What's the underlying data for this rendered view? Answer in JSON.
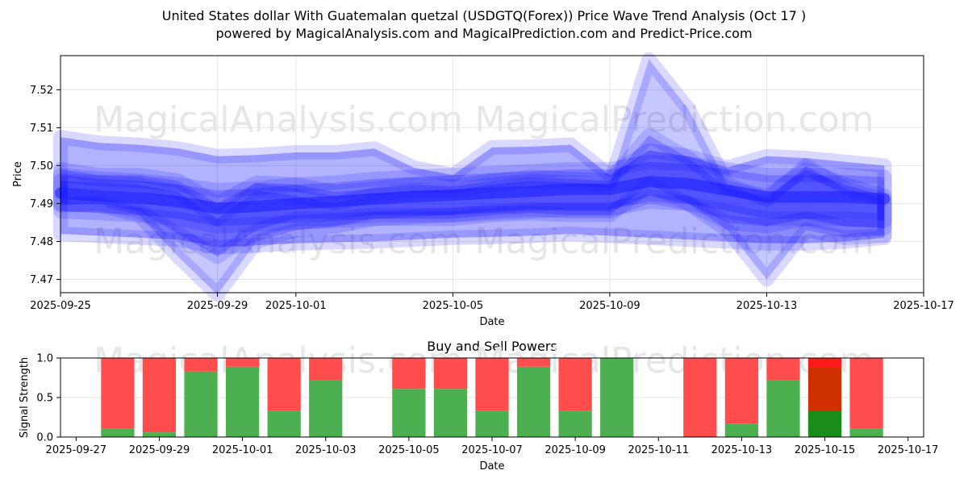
{
  "title_line1": "United States dollar With Guatemalan quetzal (USDGTQ(Forex)) Price Wave Trend Analysis (Oct 17 )",
  "title_line2": "powered by MagicalAnalysis.com and MagicalPrediction.com and Predict-Price.com",
  "watermark_left": "MagicalAnalysis.com",
  "watermark_right": "MagicalPrediction.com",
  "colors": {
    "wave": "#0000ff",
    "buy": "#4caf50",
    "sell": "#ff4d4d",
    "buy_dark": "#1a8c1a",
    "sell_dark": "#d03000",
    "sell_bright": "#ff1a1a"
  },
  "chart_data": [
    {
      "type": "area",
      "xlabel": "Date",
      "ylabel": "Price",
      "grid": true,
      "x_ticks": [
        "2025-09-25",
        "2025-09-29",
        "2025-10-01",
        "2025-10-05",
        "2025-10-09",
        "2025-10-13",
        "2025-10-17"
      ],
      "y_ticks": [
        "7.47",
        "7.48",
        "7.49",
        "7.50",
        "7.51",
        "7.52"
      ],
      "ylim": [
        7.4665,
        7.529
      ],
      "xlim": [
        "2025-09-25",
        "2025-10-17"
      ],
      "x": [
        "2025-09-25",
        "2025-09-26",
        "2025-09-27",
        "2025-09-28",
        "2025-09-29",
        "2025-09-30",
        "2025-10-01",
        "2025-10-02",
        "2025-10-03",
        "2025-10-04",
        "2025-10-05",
        "2025-10-06",
        "2025-10-07",
        "2025-10-08",
        "2025-10-09",
        "2025-10-10",
        "2025-10-11",
        "2025-10-12",
        "2025-10-13",
        "2025-10-14",
        "2025-10-15",
        "2025-10-16"
      ],
      "series": [
        {
          "upper": [
            7.5075,
            7.506,
            7.5055,
            7.5045,
            7.5025,
            7.5028,
            7.5035,
            7.5035,
            7.5045,
            7.4995,
            7.4975,
            7.5048,
            7.505,
            7.5055,
            7.4975,
            7.504,
            7.5025,
            7.4995,
            7.5025,
            7.502,
            7.501,
            7.5
          ],
          "lower": [
            7.482,
            7.4815,
            7.481,
            7.4805,
            7.4785,
            7.479,
            7.4795,
            7.4798,
            7.48,
            7.4805,
            7.481,
            7.4812,
            7.4815,
            7.482,
            7.4815,
            7.481,
            7.4805,
            7.48,
            7.4795,
            7.4795,
            7.48,
            7.481
          ]
        },
        {
          "upper": [
            7.4975,
            7.4965,
            7.496,
            7.495,
            7.4935,
            7.494,
            7.495,
            7.4955,
            7.4965,
            7.497,
            7.4975,
            7.498,
            7.4985,
            7.499,
            7.499,
            7.501,
            7.5005,
            7.499,
            7.4975,
            7.4975,
            7.4975,
            7.497
          ],
          "lower": [
            7.488,
            7.4875,
            7.487,
            7.486,
            7.484,
            7.4845,
            7.485,
            7.4855,
            7.486,
            7.4865,
            7.487,
            7.4875,
            7.488,
            7.4885,
            7.4885,
            7.4905,
            7.49,
            7.488,
            7.486,
            7.486,
            7.486,
            7.4855
          ]
        },
        {
          "upper": [
            7.499,
            7.4975,
            7.4975,
            7.496,
            7.49,
            7.4955,
            7.495,
            7.493,
            7.494,
            7.495,
            7.4945,
            7.496,
            7.497,
            7.4965,
            7.496,
            7.508,
            7.502,
            7.494,
            7.492,
            7.499,
            7.495,
            7.492
          ],
          "lower": [
            7.4895,
            7.49,
            7.488,
            7.482,
            7.476,
            7.483,
            7.486,
            7.486,
            7.487,
            7.487,
            7.487,
            7.488,
            7.4885,
            7.488,
            7.488,
            7.492,
            7.49,
            7.485,
            7.484,
            7.486,
            7.484,
            7.4835
          ]
        },
        {
          "upper": [
            7.496,
            7.4955,
            7.495,
            7.493,
            7.486,
            7.4935,
            7.492,
            7.49,
            7.4925,
            7.4935,
            7.4935,
            7.495,
            7.496,
            7.4955,
            7.495,
            7.528,
            7.515,
            7.495,
            7.491,
            7.5,
            7.494,
            7.491
          ],
          "lower": [
            7.49,
            7.4895,
            7.487,
            7.476,
            7.466,
            7.48,
            7.483,
            7.484,
            7.486,
            7.486,
            7.486,
            7.487,
            7.4875,
            7.487,
            7.487,
            7.495,
            7.49,
            7.483,
            7.47,
            7.483,
            7.481,
            7.4815
          ]
        }
      ]
    },
    {
      "type": "bar",
      "title": "Buy and Sell Powers",
      "xlabel": "Date",
      "ylabel": "Signal Strength",
      "ylim": [
        0,
        1
      ],
      "y_ticks": [
        "0.0",
        "0.5",
        "1.0"
      ],
      "x_ticks": [
        "2025-09-27",
        "2025-09-29",
        "2025-10-01",
        "2025-10-03",
        "2025-10-05",
        "2025-10-07",
        "2025-10-09",
        "2025-10-11",
        "2025-10-13",
        "2025-10-15",
        "2025-10-17"
      ],
      "xlim": [
        "2025-09-26 15:00",
        "2025-10-17 09:00"
      ],
      "bars": [
        {
          "date": "2025-09-28",
          "buy": 0.11,
          "sell": 0.89
        },
        {
          "date": "2025-09-29",
          "buy": 0.06,
          "sell": 0.94
        },
        {
          "date": "2025-09-30",
          "buy": 0.83,
          "sell": 0.17
        },
        {
          "date": "2025-10-01",
          "buy": 0.89,
          "sell": 0.11
        },
        {
          "date": "2025-10-02",
          "buy": 0.33,
          "sell": 0.67
        },
        {
          "date": "2025-10-03",
          "buy": 0.72,
          "sell": 0.28
        },
        {
          "date": "2025-10-05",
          "buy": 0.61,
          "sell": 0.39
        },
        {
          "date": "2025-10-06",
          "buy": 0.61,
          "sell": 0.39
        },
        {
          "date": "2025-10-07",
          "buy": 0.33,
          "sell": 0.67
        },
        {
          "date": "2025-10-08",
          "buy": 0.89,
          "sell": 0.11
        },
        {
          "date": "2025-10-09",
          "buy": 0.33,
          "sell": 0.67
        },
        {
          "date": "2025-10-10",
          "buy": 1.0,
          "sell": 0.0
        },
        {
          "date": "2025-10-12",
          "buy": 0.0,
          "sell": 1.0
        },
        {
          "date": "2025-10-13",
          "buy": 0.17,
          "sell": 0.83
        },
        {
          "date": "2025-10-14",
          "buy": 0.72,
          "sell": 0.28
        },
        {
          "date": "2025-10-15",
          "buy": 0.33,
          "sell": 0.67,
          "overlay": true
        },
        {
          "date": "2025-10-16",
          "buy": 0.11,
          "sell": 0.89
        }
      ]
    }
  ]
}
